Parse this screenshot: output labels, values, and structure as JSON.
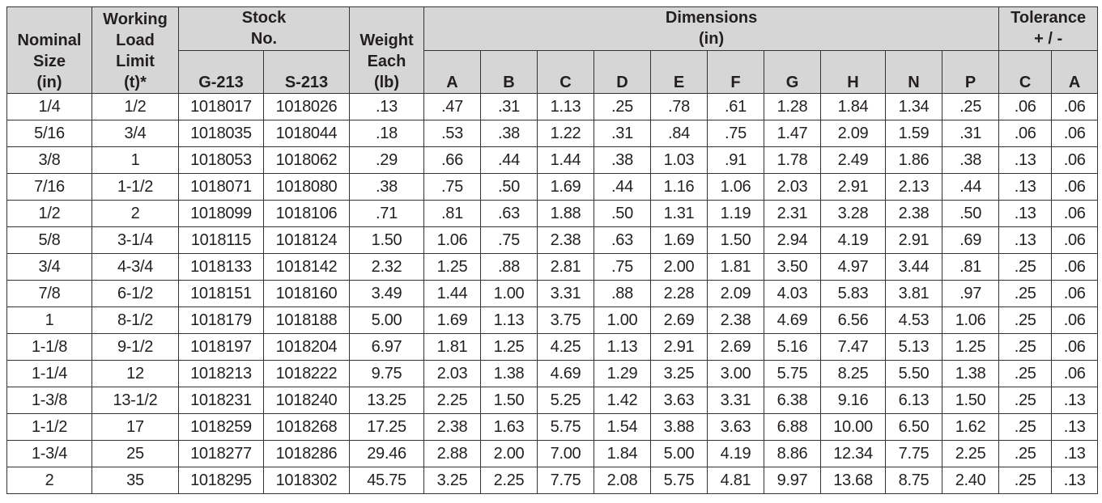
{
  "table": {
    "columns": [
      {
        "lines": [
          "Nominal",
          "Size",
          "(in)"
        ]
      },
      {
        "lines": [
          "Working",
          "Load",
          "Limit",
          "(t)*"
        ]
      },
      {
        "lines": [
          "Stock",
          "No."
        ],
        "sub": [
          "G-213",
          "S-213"
        ]
      },
      {
        "lines": [
          "Weight",
          "Each",
          "(lb)"
        ]
      },
      {
        "lines": [
          "Dimensions",
          "(in)"
        ],
        "sub": [
          "A",
          "B",
          "C",
          "D",
          "E",
          "F",
          "G",
          "H",
          "N",
          "P"
        ]
      },
      {
        "lines": [
          "Tolerance",
          "+ / -"
        ],
        "sub": [
          "C",
          "A"
        ]
      }
    ],
    "rows": [
      [
        "1/4",
        "1/2",
        "1018017",
        "1018026",
        ".13",
        ".47",
        ".31",
        "1.13",
        ".25",
        ".78",
        ".61",
        "1.28",
        "1.84",
        "1.34",
        ".25",
        ".06",
        ".06"
      ],
      [
        "5/16",
        "3/4",
        "1018035",
        "1018044",
        ".18",
        ".53",
        ".38",
        "1.22",
        ".31",
        ".84",
        ".75",
        "1.47",
        "2.09",
        "1.59",
        ".31",
        ".06",
        ".06"
      ],
      [
        "3/8",
        "1",
        "1018053",
        "1018062",
        ".29",
        ".66",
        ".44",
        "1.44",
        ".38",
        "1.03",
        ".91",
        "1.78",
        "2.49",
        "1.86",
        ".38",
        ".13",
        ".06"
      ],
      [
        "7/16",
        "1-1/2",
        "1018071",
        "1018080",
        ".38",
        ".75",
        ".50",
        "1.69",
        ".44",
        "1.16",
        "1.06",
        "2.03",
        "2.91",
        "2.13",
        ".44",
        ".13",
        ".06"
      ],
      [
        "1/2",
        "2",
        "1018099",
        "1018106",
        ".71",
        ".81",
        ".63",
        "1.88",
        ".50",
        "1.31",
        "1.19",
        "2.31",
        "3.28",
        "2.38",
        ".50",
        ".13",
        ".06"
      ],
      [
        "5/8",
        "3-1/4",
        "1018115",
        "1018124",
        "1.50",
        "1.06",
        ".75",
        "2.38",
        ".63",
        "1.69",
        "1.50",
        "2.94",
        "4.19",
        "2.91",
        ".69",
        ".13",
        ".06"
      ],
      [
        "3/4",
        "4-3/4",
        "1018133",
        "1018142",
        "2.32",
        "1.25",
        ".88",
        "2.81",
        ".75",
        "2.00",
        "1.81",
        "3.50",
        "4.97",
        "3.44",
        ".81",
        ".25",
        ".06"
      ],
      [
        "7/8",
        "6-1/2",
        "1018151",
        "1018160",
        "3.49",
        "1.44",
        "1.00",
        "3.31",
        ".88",
        "2.28",
        "2.09",
        "4.03",
        "5.83",
        "3.81",
        ".97",
        ".25",
        ".06"
      ],
      [
        "1",
        "8-1/2",
        "1018179",
        "1018188",
        "5.00",
        "1.69",
        "1.13",
        "3.75",
        "1.00",
        "2.69",
        "2.38",
        "4.69",
        "6.56",
        "4.53",
        "1.06",
        ".25",
        ".06"
      ],
      [
        "1-1/8",
        "9-1/2",
        "1018197",
        "1018204",
        "6.97",
        "1.81",
        "1.25",
        "4.25",
        "1.13",
        "2.91",
        "2.69",
        "5.16",
        "7.47",
        "5.13",
        "1.25",
        ".25",
        ".06"
      ],
      [
        "1-1/4",
        "12",
        "1018213",
        "1018222",
        "9.75",
        "2.03",
        "1.38",
        "4.69",
        "1.29",
        "3.25",
        "3.00",
        "5.75",
        "8.25",
        "5.50",
        "1.38",
        ".25",
        ".06"
      ],
      [
        "1-3/8",
        "13-1/2",
        "1018231",
        "1018240",
        "13.25",
        "2.25",
        "1.50",
        "5.25",
        "1.42",
        "3.63",
        "3.31",
        "6.38",
        "9.16",
        "6.13",
        "1.50",
        ".25",
        ".13"
      ],
      [
        "1-1/2",
        "17",
        "1018259",
        "1018268",
        "17.25",
        "2.38",
        "1.63",
        "5.75",
        "1.54",
        "3.88",
        "3.63",
        "6.88",
        "10.00",
        "6.50",
        "1.62",
        ".25",
        ".13"
      ],
      [
        "1-3/4",
        "25",
        "1018277",
        "1018286",
        "29.46",
        "2.88",
        "2.00",
        "7.00",
        "1.84",
        "5.00",
        "4.19",
        "8.86",
        "12.34",
        "7.75",
        "2.25",
        ".25",
        ".13"
      ],
      [
        "2",
        "35",
        "1018295",
        "1018302",
        "45.75",
        "3.25",
        "2.25",
        "7.75",
        "2.08",
        "5.75",
        "4.81",
        "9.97",
        "13.68",
        "8.75",
        "2.40",
        ".25",
        ".13"
      ]
    ]
  }
}
